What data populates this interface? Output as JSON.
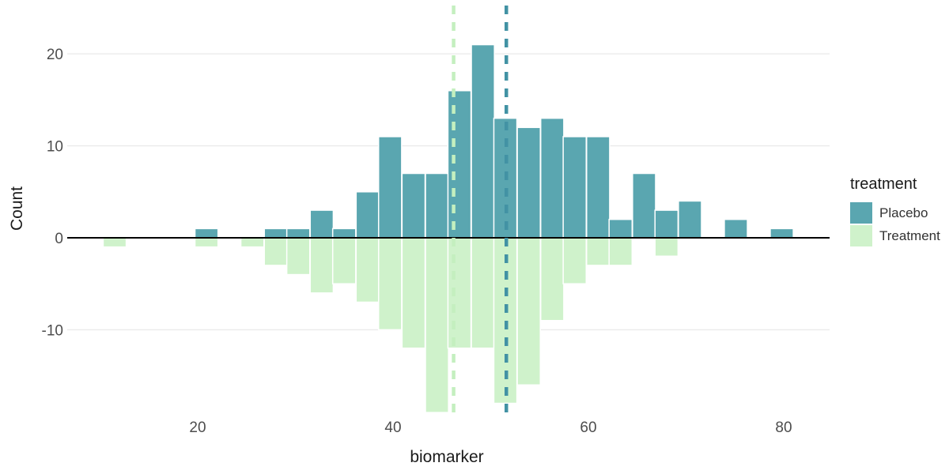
{
  "chart_data": {
    "type": "bar",
    "variant": "mirrored-histogram",
    "title": "",
    "xlabel": "biomarker",
    "ylabel": "Count",
    "x_ticks": [
      20,
      40,
      60,
      80
    ],
    "y_ticks": [
      20,
      10,
      0,
      -10
    ],
    "xlim": [
      6.6,
      84.7
    ],
    "ylim": [
      -19.1,
      25.5
    ],
    "binwidth": 2.36,
    "bin_centers": [
      11.5,
      20.9,
      25.6,
      28.0,
      30.3,
      32.7,
      35.0,
      37.4,
      39.7,
      42.1,
      44.5,
      46.8,
      49.2,
      51.5,
      53.9,
      56.3,
      58.6,
      61.0,
      63.3,
      65.7,
      68.0,
      70.4,
      75.1,
      79.8
    ],
    "series": [
      {
        "name": "Placebo",
        "direction": "up",
        "color": "#5aa6b0",
        "values": [
          0,
          1,
          0,
          1,
          1,
          3,
          1,
          5,
          11,
          7,
          7,
          16,
          21,
          13,
          12,
          13,
          11,
          11,
          2,
          7,
          3,
          4,
          2,
          1
        ]
      },
      {
        "name": "Treatment",
        "direction": "down",
        "color": "#cff2cb",
        "values": [
          1,
          1,
          1,
          3,
          4,
          6,
          5,
          7,
          10,
          12,
          19,
          12,
          12,
          18,
          16,
          9,
          5,
          3,
          3,
          0,
          2,
          0,
          0,
          0
        ]
      }
    ],
    "mean_lines": [
      {
        "series": "Treatment",
        "x": 46.2,
        "color": "#c4efbf",
        "style": "dashed"
      },
      {
        "series": "Placebo",
        "x": 51.6,
        "color": "#4292a4",
        "style": "dashed"
      }
    ],
    "grid": {
      "horizontal": true,
      "vertical": false,
      "color": "#ebebeb"
    },
    "baseline": {
      "y": 0,
      "color": "#000000"
    },
    "bar_border_color": "#ffffff",
    "tick_label_color": "#4d4d4d",
    "legend": {
      "title": "treatment",
      "position": "right",
      "items": [
        {
          "label": "Placebo",
          "color": "#5aa6b0"
        },
        {
          "label": "Treatment",
          "color": "#cff2cb"
        }
      ]
    }
  }
}
